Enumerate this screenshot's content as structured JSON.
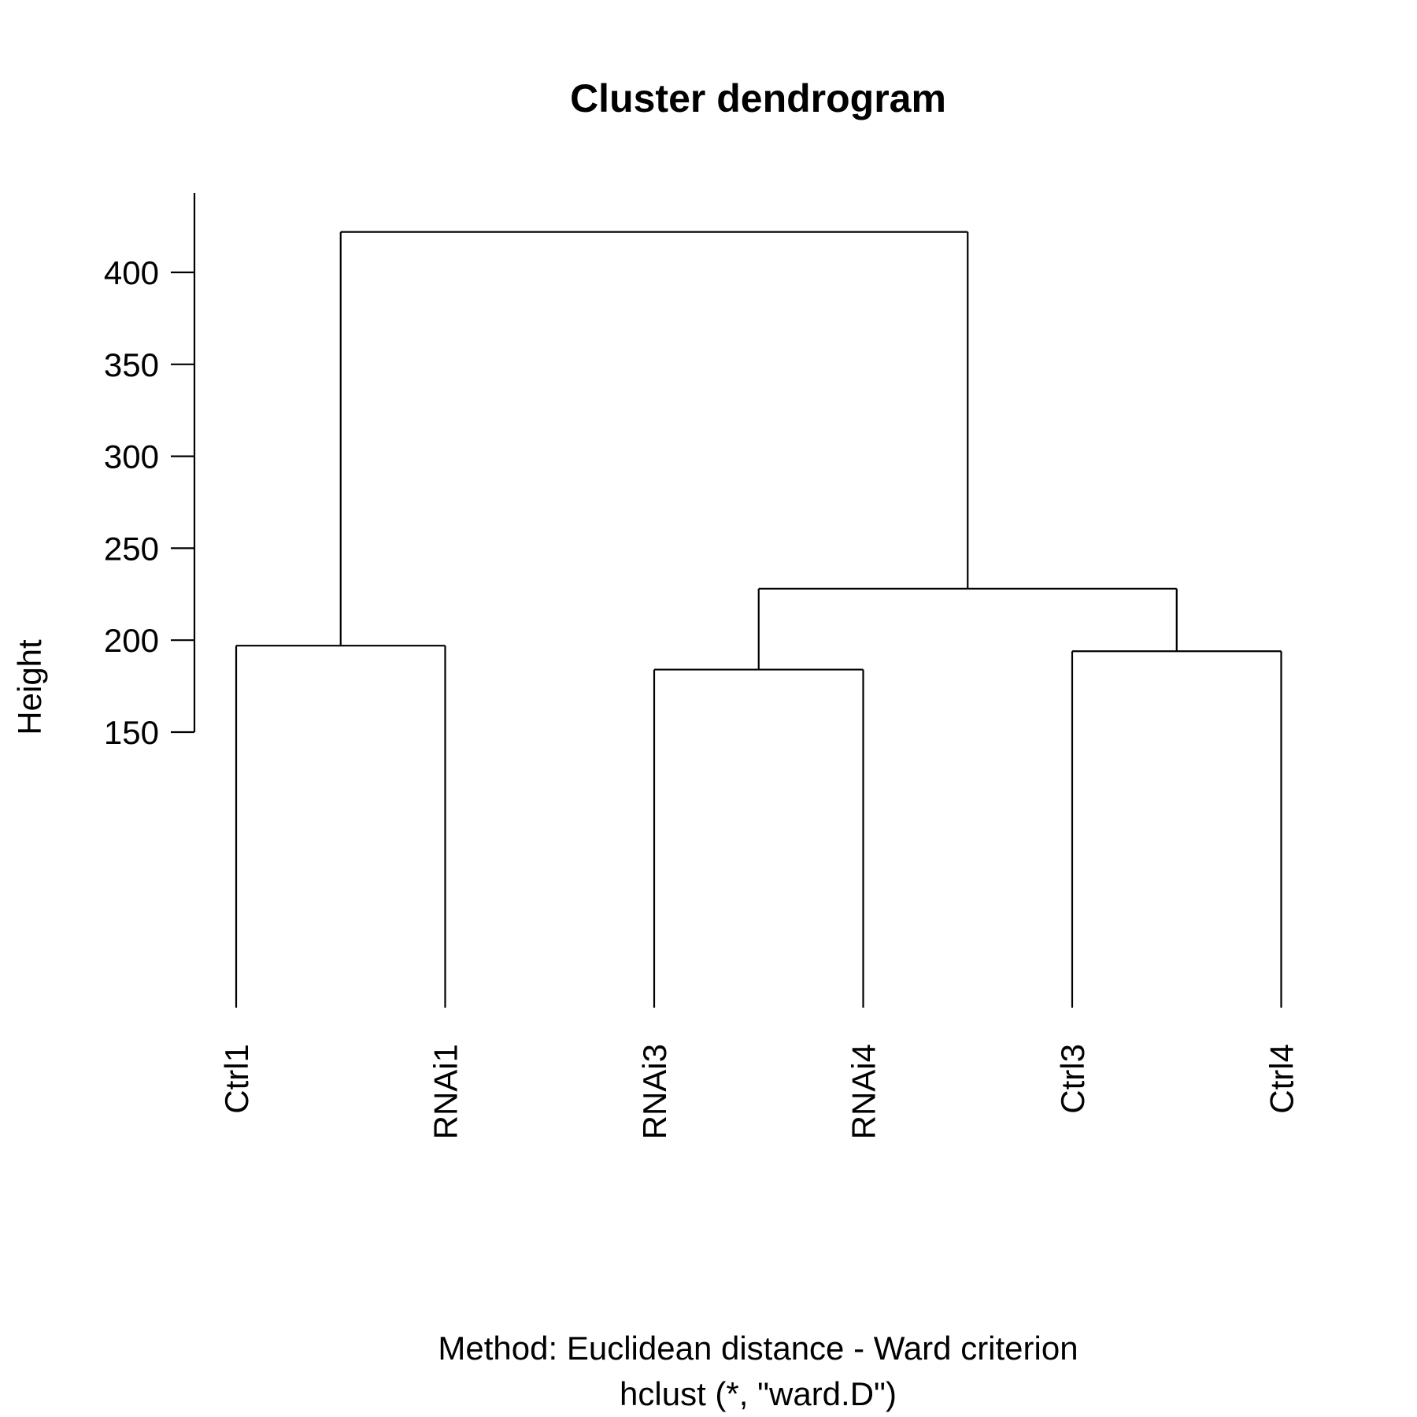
{
  "chart_data": {
    "type": "dendrogram",
    "title": "Cluster dendrogram",
    "ylabel": "Height",
    "yticks": [
      150,
      200,
      250,
      300,
      350,
      400
    ],
    "leaves": [
      "Ctrl1",
      "RNAi1",
      "RNAi3",
      "RNAi4",
      "Ctrl3",
      "Ctrl4"
    ],
    "merges": [
      {
        "children": [
          "Ctrl1",
          "RNAi1"
        ],
        "height": 197
      },
      {
        "children": [
          "RNAi3",
          "RNAi4"
        ],
        "height": 184
      },
      {
        "children": [
          "Ctrl3",
          "Ctrl4"
        ],
        "height": 194
      },
      {
        "children": [
          "RNAi3+RNAi4",
          "Ctrl3+Ctrl4"
        ],
        "height": 228
      },
      {
        "children": [
          "Ctrl1+RNAi1",
          "RNAi3+RNAi4+Ctrl3+Ctrl4"
        ],
        "height": 422
      }
    ],
    "subtitle_lines": [
      "Method: Euclidean distance - Ward criterion",
      "hclust (*, \"ward.D\")"
    ]
  }
}
